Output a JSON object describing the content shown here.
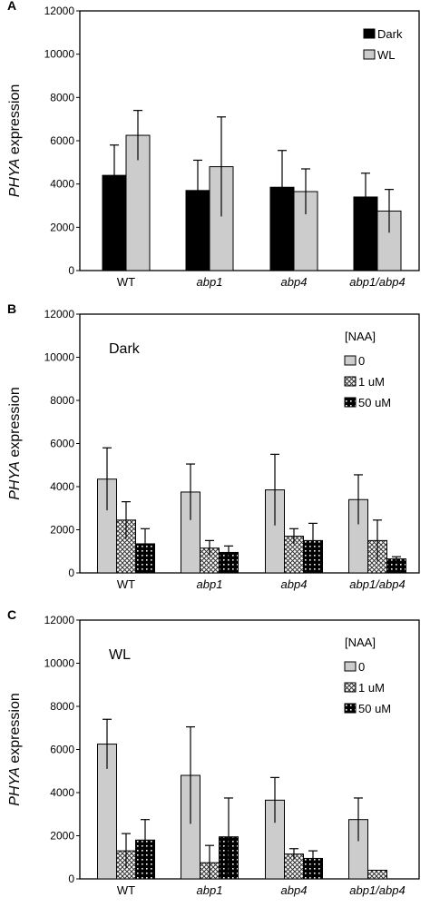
{
  "patterns": {
    "dark": {
      "fill": "#000000"
    },
    "wl": {
      "fill": "#cccccc"
    },
    "naa_0": {
      "fill": "#cccccc"
    },
    "naa_1": {
      "fill": "#dddddd",
      "kind": "crosshatch"
    },
    "naa_50": {
      "fill": "#000000",
      "kind": "white-dots"
    }
  },
  "chart_data": [
    {
      "panel_label": "A",
      "type": "bar",
      "ylabel_italic": "PHYA",
      "ylabel_rest": " expression",
      "ylim": [
        0,
        12000
      ],
      "yticks": [
        "0",
        "2000",
        "4000",
        "6000",
        "8000",
        "10000",
        "12000"
      ],
      "categories": [
        "WT",
        "abp1",
        "abp4",
        "abp1/abp4"
      ],
      "category_italic": [
        false,
        true,
        true,
        true
      ],
      "legend_title": "",
      "panel_text": "",
      "legend_position": "top-right",
      "series": [
        {
          "name": "Dark",
          "pattern": "dark",
          "values": [
            4400,
            3700,
            3850,
            3400
          ],
          "errors": [
            1400,
            1400,
            1700,
            1100
          ]
        },
        {
          "name": "WL",
          "pattern": "wl",
          "values": [
            6250,
            4800,
            3650,
            2750
          ],
          "errors": [
            1150,
            2300,
            1050,
            1000
          ]
        }
      ]
    },
    {
      "panel_label": "B",
      "type": "bar",
      "ylabel_italic": "PHYA",
      "ylabel_rest": " expression",
      "ylim": [
        0,
        12000
      ],
      "yticks": [
        "0",
        "2000",
        "4000",
        "6000",
        "8000",
        "10000",
        "12000"
      ],
      "categories": [
        "WT",
        "abp1",
        "abp4",
        "abp1/abp4"
      ],
      "category_italic": [
        false,
        true,
        true,
        true
      ],
      "panel_text": "Dark",
      "legend_title": "[NAA]",
      "legend_position": "top-right",
      "series": [
        {
          "name": "0",
          "pattern": "naa_0",
          "values": [
            4350,
            3750,
            3850,
            3400
          ],
          "errors": [
            1450,
            1300,
            1650,
            1150
          ]
        },
        {
          "name": "1 uM",
          "pattern": "naa_1",
          "values": [
            2450,
            1150,
            1700,
            1500
          ],
          "errors": [
            850,
            350,
            350,
            950
          ]
        },
        {
          "name": "50 uM",
          "pattern": "naa_50",
          "values": [
            1350,
            950,
            1500,
            650
          ],
          "errors": [
            700,
            300,
            800,
            100
          ]
        }
      ]
    },
    {
      "panel_label": "C",
      "type": "bar",
      "ylabel_italic": "PHYA",
      "ylabel_rest": " expression",
      "ylim": [
        0,
        12000
      ],
      "yticks": [
        "0",
        "2000",
        "4000",
        "6000",
        "8000",
        "10000",
        "12000"
      ],
      "categories": [
        "WT",
        "abp1",
        "abp4",
        "abp1/abp4"
      ],
      "category_italic": [
        false,
        true,
        true,
        true
      ],
      "panel_text": "WL",
      "legend_title": "[NAA]",
      "legend_position": "top-right",
      "series": [
        {
          "name": "0",
          "pattern": "naa_0",
          "values": [
            6250,
            4800,
            3650,
            2750
          ],
          "errors": [
            1150,
            2250,
            1050,
            1000
          ]
        },
        {
          "name": "1 uM",
          "pattern": "naa_1",
          "values": [
            1300,
            750,
            1150,
            400
          ],
          "errors": [
            800,
            800,
            250,
            0
          ]
        },
        {
          "name": "50 uM",
          "pattern": "naa_50",
          "values": [
            1800,
            1950,
            950,
            0
          ],
          "errors": [
            950,
            1800,
            350,
            0
          ]
        }
      ]
    }
  ]
}
